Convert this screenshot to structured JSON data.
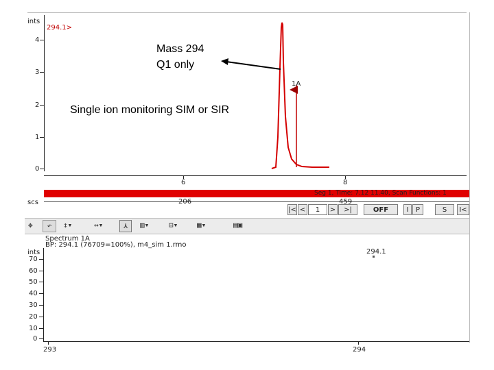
{
  "chromatogram": {
    "y_unit_label": "ints",
    "trace_label": "294.1>",
    "y_tick_labels": [
      "4",
      "3",
      "2",
      "1",
      "0"
    ],
    "x_tick_labels": [
      "6",
      "8"
    ],
    "peak_label": "1A",
    "trace_color": "#d40000"
  },
  "annotations": {
    "mass_line1": "Mass 294",
    "mass_line2": "Q1 only",
    "sim_text": "Single ion monitoring SIM or SIR"
  },
  "scan_bar": {
    "text": "Seg 1, Time: 7.12 11.40, Scan Functions: 1",
    "left_label": "scs",
    "scan_label_1": "206",
    "scan_label_2": "459",
    "bar_color": "#e00000"
  },
  "scan_controls": {
    "first": "|<",
    "prev": "<",
    "next": ">",
    "last": ">|",
    "page_label": "1",
    "offset_label": "OFF",
    "mode1": "I",
    "mode2": "P",
    "mode3": "S",
    "mode4": "I<"
  },
  "toolbar_icons": [
    "move",
    "undo",
    "zoom-x",
    "zoom-y",
    "peak",
    "label",
    "range",
    "spectrum",
    "library"
  ],
  "spectrum": {
    "title_line1": "Spectrum 1A",
    "title_line2": "BP: 294.1 (76709=100%), m4_sim 1.rmo",
    "y_unit_label": "ints",
    "y_tick_labels": [
      "70",
      "60",
      "50",
      "40",
      "30",
      "20",
      "10",
      "0"
    ],
    "peak_label": "294.1",
    "x_tick_labels": [
      "293",
      "294"
    ]
  }
}
